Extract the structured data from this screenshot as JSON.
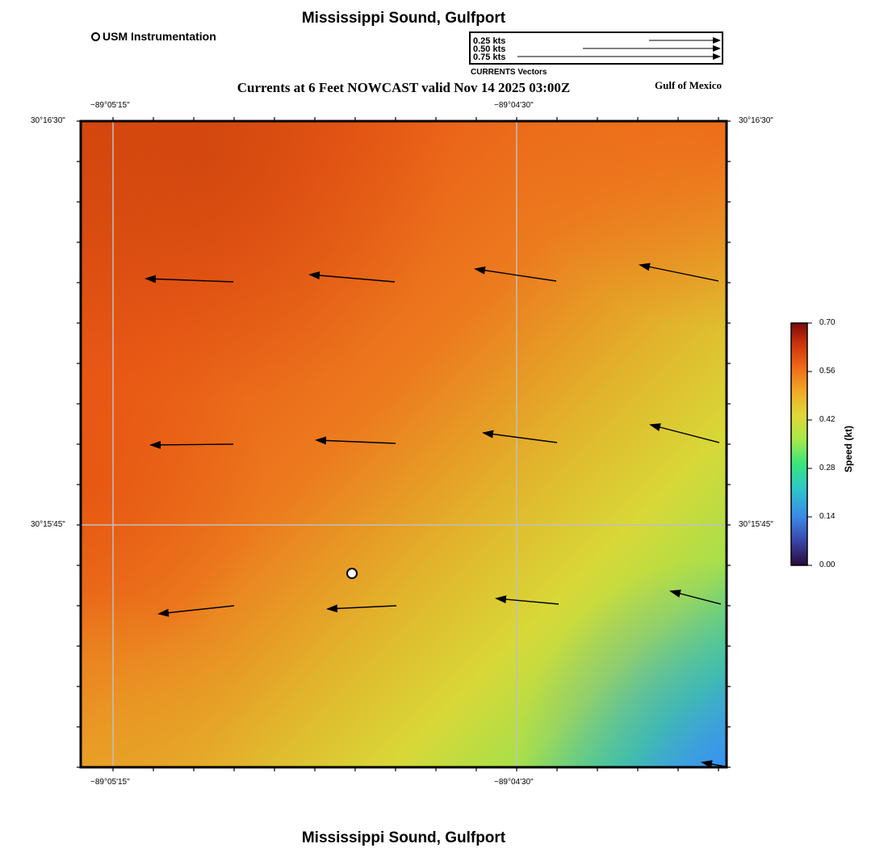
{
  "header": {
    "title": "Mississippi Sound, Gulfport",
    "subtitle": "Currents at 6 Feet NOWCAST valid Nov 14 2025 03:00Z",
    "region_label": "Gulf of Mexico",
    "station_legend": "USM Instrumentation"
  },
  "vector_legend": {
    "caption": "CURRENTS Vectors",
    "entries": [
      "0.25 kts",
      "0.50 kts",
      "0.75 kts"
    ]
  },
  "axes": {
    "lon_labels": [
      "−89°05'15\"",
      "−89°04'30\""
    ],
    "lat_labels": [
      "30°16'30\"",
      "30°15'45\""
    ]
  },
  "colorbar": {
    "title": "Speed (kt)",
    "ticks": [
      "0.70",
      "0.56",
      "0.42",
      "0.28",
      "0.14",
      "0.00"
    ]
  },
  "footer": {
    "title": "Mississippi Sound, Gulfport"
  },
  "map": {
    "station_marker": "usm-station-marker",
    "current_vectors": "current-vector-arrows"
  }
}
